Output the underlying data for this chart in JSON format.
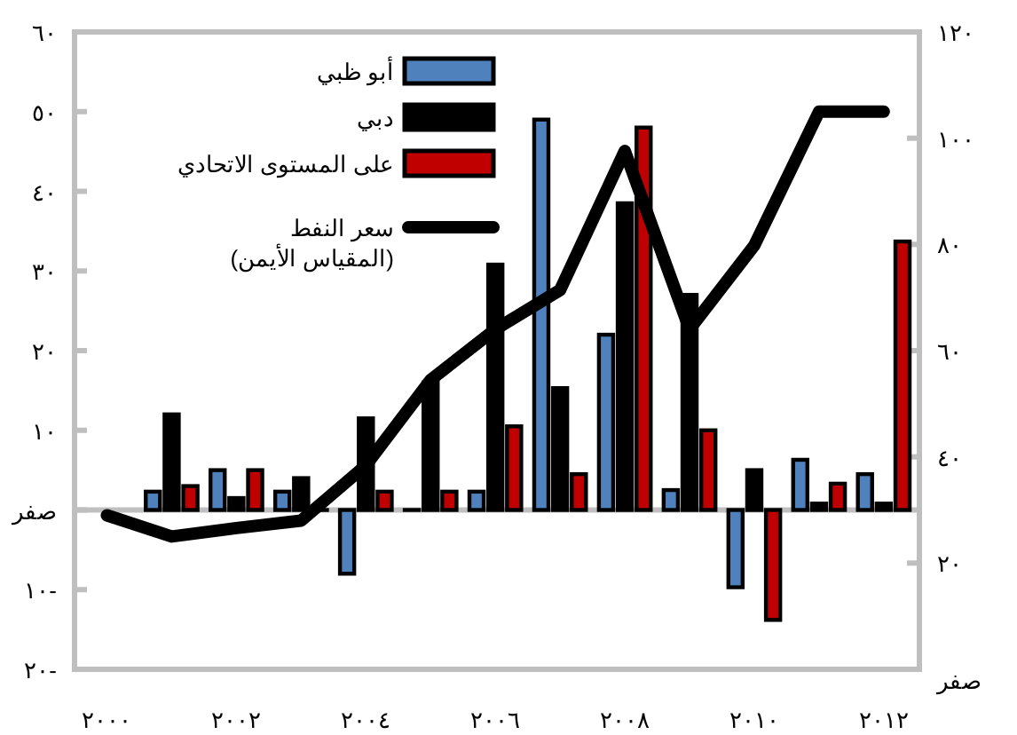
{
  "chart_data": {
    "type": "bar",
    "legend": "top left",
    "x": [
      2001,
      2002,
      2003,
      2004,
      2005,
      2006,
      2007,
      2008,
      2009,
      2010,
      2011,
      2012
    ],
    "xlim": [
      1999.5,
      2012.55
    ],
    "xticks": [
      {
        "value": 2000,
        "label": "٢٠٠٠"
      },
      {
        "value": 2002,
        "label": "٢٠٠٢"
      },
      {
        "value": 2004,
        "label": "٢٠٠٤"
      },
      {
        "value": 2006,
        "label": "٢٠٠٦"
      },
      {
        "value": 2008,
        "label": "٢٠٠٨"
      },
      {
        "value": 2010,
        "label": "٢٠١٠"
      },
      {
        "value": 2012,
        "label": "٢٠١٢"
      }
    ],
    "ylim": [
      -20,
      60
    ],
    "yticks": [
      {
        "value": -20,
        "label": "٢٠-"
      },
      {
        "value": -10,
        "label": "١٠-"
      },
      {
        "value": 0,
        "label": "صفر"
      },
      {
        "value": 10,
        "label": "١٠"
      },
      {
        "value": 20,
        "label": "٢٠"
      },
      {
        "value": 30,
        "label": "٣٠"
      },
      {
        "value": 40,
        "label": "٤٠"
      },
      {
        "value": 50,
        "label": "٥٠"
      },
      {
        "value": 60,
        "label": "٦٠"
      }
    ],
    "y2lim": [
      0,
      120
    ],
    "y2ticks": [
      {
        "value": 0,
        "label": "صفر"
      },
      {
        "value": 20,
        "label": "٢٠"
      },
      {
        "value": 40,
        "label": "٤٠"
      },
      {
        "value": 60,
        "label": "٦٠"
      },
      {
        "value": 80,
        "label": "٨٠"
      },
      {
        "value": 100,
        "label": "١٠٠"
      },
      {
        "value": 120,
        "label": "١٢٠"
      }
    ],
    "series": [
      {
        "name": "أبو ظبي",
        "color": "#4f81bd",
        "values": [
          2.3,
          5,
          2.3,
          -8,
          0,
          2.3,
          49,
          22,
          2.5,
          -9.7,
          6.3,
          4.5
        ]
      },
      {
        "name": "دبي",
        "color": "#000000",
        "values": [
          12,
          1.5,
          4,
          11.5,
          16,
          30.8,
          15.3,
          38.5,
          27,
          5,
          0.8,
          0.8
        ]
      },
      {
        "name": "على المستوى الاتحادي",
        "color": "#c00000",
        "values": [
          3,
          5,
          0,
          2.3,
          2.3,
          10.5,
          4.5,
          48,
          10,
          -13.8,
          3.3,
          33.7
        ]
      },
      {
        "name": "سعر النفط\n(المقياس الأيمن)",
        "type": "line",
        "axis": "y2",
        "color": "#000000",
        "x": [
          2000,
          2001,
          2002,
          2003,
          2004,
          2005,
          2006,
          2007,
          2008,
          2009,
          2010,
          2011,
          2012
        ],
        "values": [
          29,
          25,
          26.6,
          28,
          38.4,
          54.5,
          64,
          71.4,
          97.6,
          64,
          79.8,
          105,
          105
        ]
      }
    ]
  }
}
